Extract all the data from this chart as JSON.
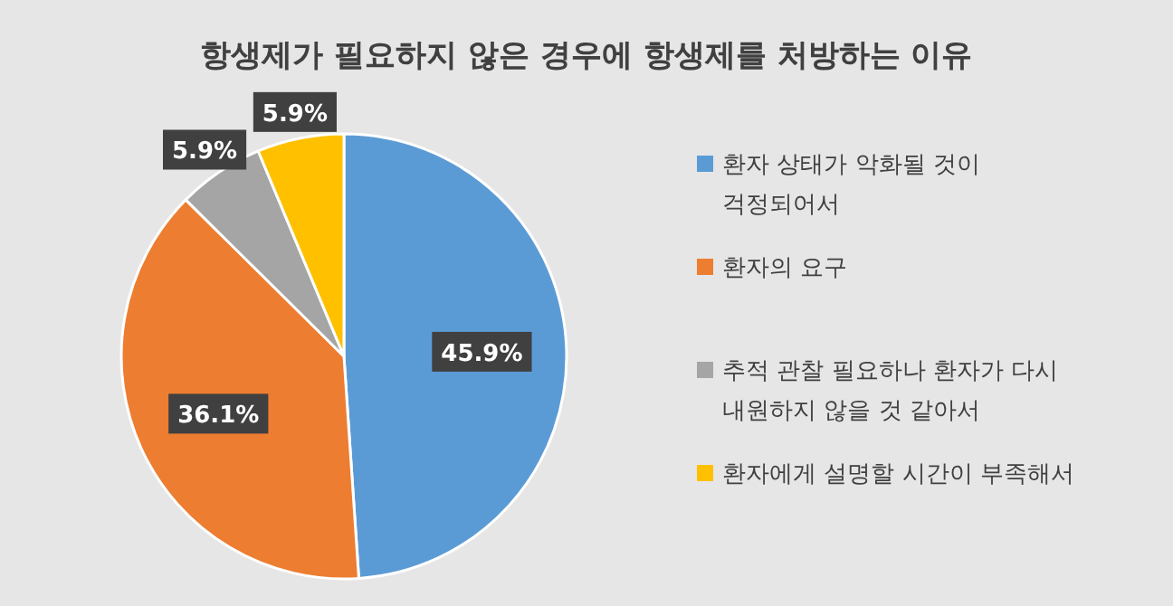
{
  "chart_data": {
    "type": "pie",
    "title": "항생제가 필요하지 않은 경우에 항생제를 처방하는 이유",
    "categories": [
      "환자 상태가 악화될 것이 걱정되어서",
      "환자의 요구",
      "추적 관찰 필요하나 환자가 다시 내원하지 않을 것 같아서",
      "환자에게 설명할 시간이 부족해서"
    ],
    "values": [
      45.9,
      36.1,
      5.9,
      5.9
    ],
    "colors": [
      "#5b9bd5",
      "#ed7d31",
      "#a5a5a5",
      "#ffc000"
    ],
    "value_labels": [
      "45.9%",
      "36.1%",
      "5.9%",
      "5.9%"
    ],
    "legend": "right"
  }
}
